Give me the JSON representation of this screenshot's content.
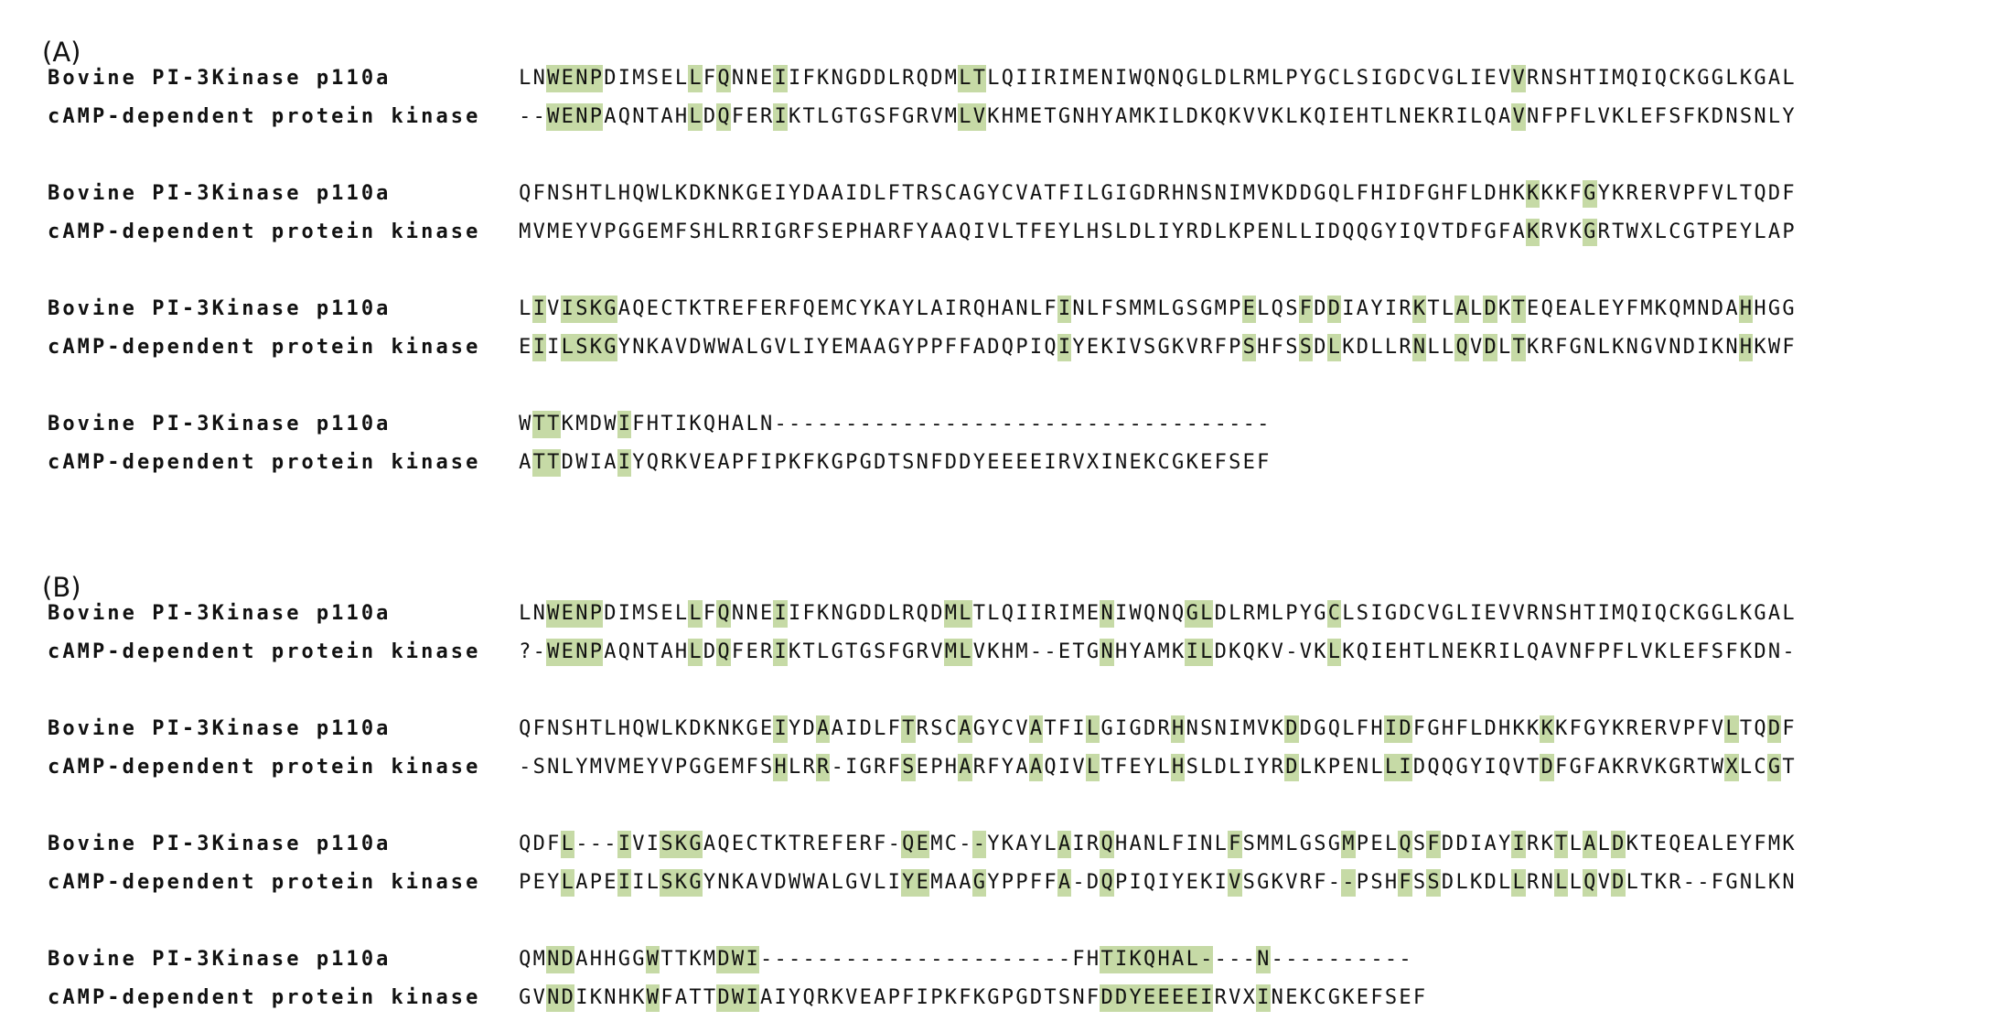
{
  "colors": {
    "highlight": "#c6daa6",
    "text": "#111111",
    "background": "#ffffff"
  },
  "panels": [
    {
      "label": "(A)",
      "blocks": [
        [
          {
            "name": "Bovine PI-3Kinase p110a",
            "seq": "LNWENPDIMSELLFQNNEIIFKNGDDLRQDMLTLQIIRIMENIWQNQGLDLRMLPYGCLSIGDCVGLIEVVRNSHTIMQIQCKGGLKGAL",
            "hl": [
              2,
              3,
              4,
              5,
              12,
              14,
              18,
              31,
              32,
              70
            ]
          },
          {
            "name": "cAMP-dependent protein kinase",
            "seq": "--WENPAQNTAHLDQFERIKTLGTGSFGRVMLVKHMETGNHYAMKILDKQKVVKLKQIEHTLNEKRILQAVNFPFLVKLEFSFKDNSNLY",
            "hl": [
              2,
              3,
              4,
              5,
              12,
              14,
              18,
              31,
              32,
              70
            ]
          }
        ],
        [
          {
            "name": "Bovine PI-3Kinase p110a",
            "seq": "QFNSHTLHQWLKDKNKGEIYDAAIDLFTRSCAGYCVATFILGIGDRHNSNIMVKDDGQLFHIDFGHFLDHKKKKFGYKRERVPFVLTQDF",
            "hl": [
              71,
              75
            ]
          },
          {
            "name": "cAMP-dependent protein kinase",
            "seq": "MVMEYVPGGEMFSHLRRIGRFSEPHARFYAAQIVLTFEYLHSLDLIYRDLKPENLLIDQQGYIQVTDFGFAKRVKGRTWXLCGTPEYLAP",
            "hl": [
              71,
              75
            ]
          }
        ],
        [
          {
            "name": "Bovine PI-3Kinase p110a",
            "seq": "LIVISKGAQECTKTREFERFQEMCYKAYLAIRQHANLFINLFSMMLGSGMPELQSFDDIAYIRKTLALDKTEQEALEYFMKQMNDAHHGG",
            "hl": [
              1,
              3,
              4,
              5,
              6,
              38,
              51,
              55,
              57,
              63,
              66,
              68,
              70,
              86
            ]
          },
          {
            "name": "cAMP-dependent protein kinase",
            "seq": "EIILSKGYNKAVDWWALGVLIYEMAAGYPPFFADQPIQIYEKIVSGKVRFPSHFSSDLKDLLRNLLQVDLTKRFGNLKNGVNDIKNHKWF",
            "hl": [
              1,
              3,
              4,
              5,
              6,
              38,
              51,
              55,
              57,
              63,
              66,
              68,
              70,
              86
            ]
          }
        ],
        [
          {
            "name": "Bovine PI-3Kinase p110a",
            "seq": "WTTKMDWIFHTIKQHALN-----------------------------------",
            "hl": [
              1,
              2,
              7
            ]
          },
          {
            "name": "cAMP-dependent protein kinase",
            "seq": "ATTDWIAIYQRKVEAPFIPKFKGPGDTSNFDDYEEEEIRVXINEKCGKEFSEF",
            "hl": [
              1,
              2,
              7
            ]
          }
        ]
      ]
    },
    {
      "label": "(B)",
      "blocks": [
        [
          {
            "name": "Bovine PI-3Kinase p110a",
            "seq": "LNWENPDIMSELLFQNNEIIFKNGDDLRQDMLTLQIIRIMENIWQNQGLDLRMLPYGCLSIGDCVGLIEVVRNSHTIMQIQCKGGLKGAL",
            "hl": [
              2,
              3,
              4,
              5,
              12,
              14,
              18,
              30,
              31,
              41,
              47,
              48,
              57
            ]
          },
          {
            "name": "cAMP-dependent protein kinase",
            "seq": "?-WENPAQNTAHLDQFERIKTLGTGSFGRVMLVKHM--ETGNHYAMKILDKQKV-VKLKQIEHTLNEKRILQAVNFPFLVKLEFSFKDN-",
            "hl": [
              2,
              3,
              4,
              5,
              12,
              14,
              18,
              30,
              31,
              41,
              47,
              48,
              57
            ]
          }
        ],
        [
          {
            "name": "Bovine PI-3Kinase p110a",
            "seq": "QFNSHTLHQWLKDKNKGEIYDAAIDLFTRSCAGYCVATFILGIGDRHNSNIMVKDDGQLFHIDFGHFLDHKKKKFGYKRERVPFVLTQDF",
            "hl": [
              18,
              21,
              27,
              31,
              36,
              40,
              46,
              54,
              61,
              62,
              72,
              85,
              88
            ]
          },
          {
            "name": "cAMP-dependent protein kinase",
            "seq": "-SNLYMVMEYVPGGEMFSHLRR-IGRFSEPHARFYAAQIVLTFEYLHSLDLIYRDLKPENLLIDQQGYIQVTDFGFAKRVKGRTWXLCGT",
            "hl": [
              18,
              21,
              27,
              31,
              36,
              40,
              46,
              54,
              61,
              62,
              72,
              85,
              88
            ]
          }
        ],
        [
          {
            "name": "Bovine PI-3Kinase p110a",
            "seq": "QDFL---IVISKGAQECTKTREFERF-QEMC--YKAYLAIRQHANLFINLFSMMLGSGMPELQSFDDIAYIRKTLALDKTEQEALEYFMK",
            "hl": [
              3,
              7,
              10,
              11,
              12,
              27,
              28,
              32,
              38,
              41,
              50,
              58,
              62,
              64,
              70,
              73,
              75,
              77
            ]
          },
          {
            "name": "cAMP-dependent protein kinase",
            "seq": "PEYLAPEIILSKGYNKAVDWWALGVLIYEMAAGYPPFFA-DQPIQIYEKIVSGKVRF--PSHFSSDLKDLLRNLLQVDLTKR--FGNLKN",
            "hl": [
              3,
              7,
              10,
              11,
              12,
              27,
              28,
              32,
              38,
              41,
              50,
              58,
              62,
              64,
              70,
              73,
              75,
              77
            ]
          }
        ],
        [
          {
            "name": "Bovine PI-3Kinase p110a",
            "seq": "QMNDAHHGGWTTKMDWI----------------------FHTIKQHAL----N----------",
            "hl": [
              2,
              3,
              9,
              14,
              15,
              16,
              41,
              42,
              43,
              44,
              45,
              46,
              47,
              48,
              52
            ]
          },
          {
            "name": "cAMP-dependent protein kinase",
            "seq": "GVNDIKNHKWFATTDWIAIYQRKVEAPFIPKFKGPGDTSNFDDYEEEEIRVXINEKCGKEFSEF",
            "hl": [
              2,
              3,
              9,
              14,
              15,
              16,
              41,
              42,
              43,
              44,
              45,
              46,
              47,
              48,
              52
            ]
          }
        ]
      ]
    }
  ]
}
